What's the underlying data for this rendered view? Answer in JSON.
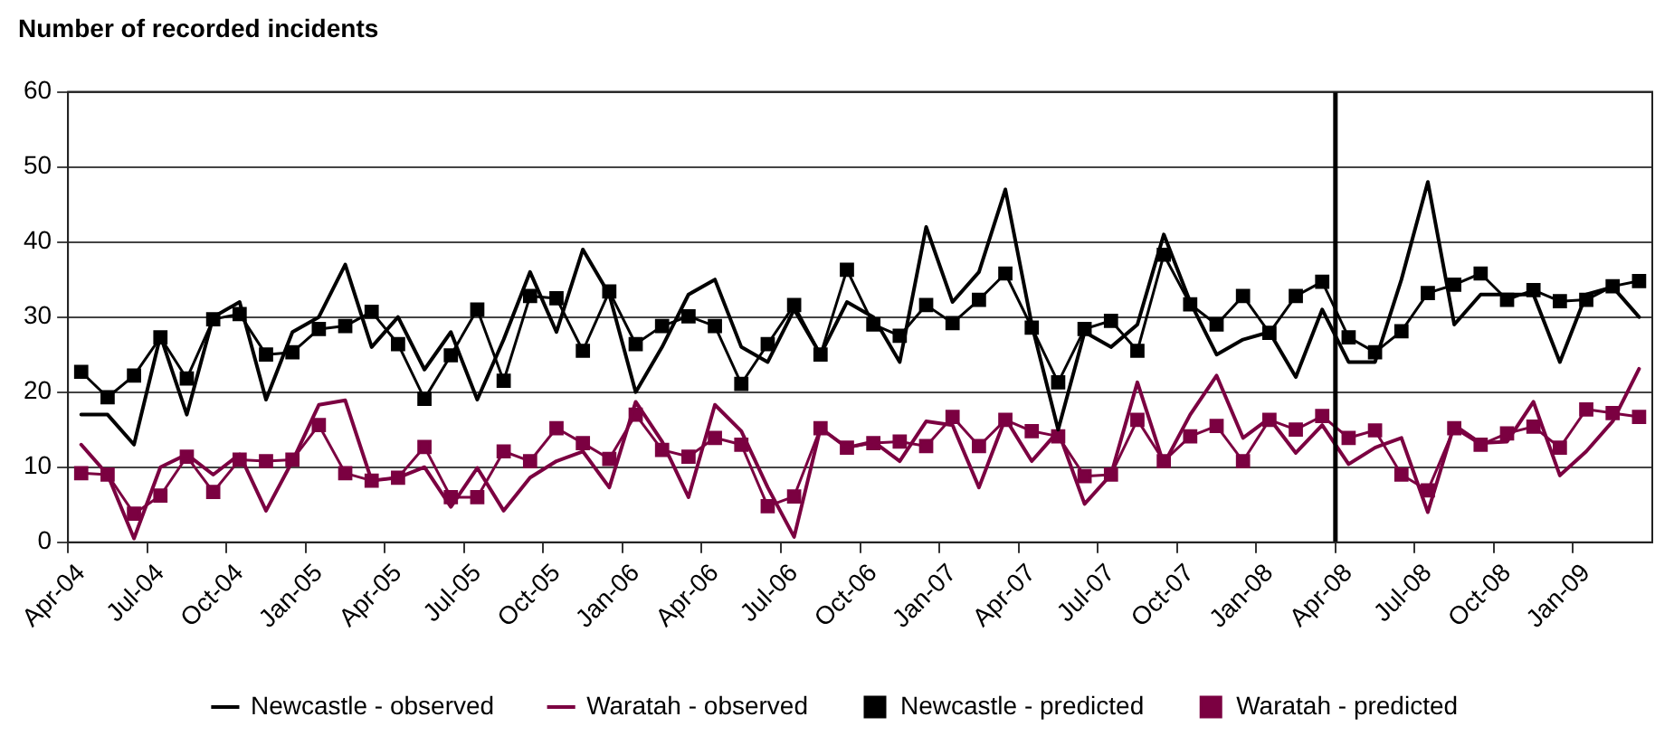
{
  "chart_data": {
    "type": "line",
    "title": "Number of recorded incidents",
    "categories": [
      "Apr-04",
      null,
      null,
      "Jul-04",
      null,
      null,
      "Oct-04",
      null,
      null,
      "Jan-05",
      null,
      null,
      "Apr-05",
      null,
      null,
      "Jul-05",
      null,
      null,
      "Oct-05",
      null,
      null,
      "Jan-06",
      null,
      null,
      "Apr-06",
      null,
      null,
      "Jul-06",
      null,
      null,
      "Oct-06",
      null,
      null,
      "Jan-07",
      null,
      null,
      "Apr-07",
      null,
      null,
      "Jul-07",
      null,
      null,
      "Oct-07",
      null,
      null,
      "Jan-08",
      null,
      null,
      "Apr-08",
      null,
      null,
      "Jul-08",
      null,
      null,
      "Oct-08",
      null,
      null,
      "Jan-09",
      null,
      null
    ],
    "series": [
      {
        "name": "Newcastle - observed",
        "color": "#000000",
        "marker": "none",
        "values": [
          17,
          17,
          13,
          27.5,
          17,
          30,
          32,
          19,
          28,
          30,
          37,
          26,
          30,
          23,
          28,
          19,
          27,
          36,
          28,
          39,
          33,
          20,
          26,
          33,
          35,
          26,
          24,
          31,
          25,
          32,
          30,
          24,
          42,
          32,
          36,
          47,
          29,
          15,
          28,
          26,
          29,
          41,
          32,
          25,
          27,
          28,
          22,
          31,
          24,
          24,
          35,
          48,
          29,
          33,
          33,
          33,
          24,
          33,
          34,
          30
        ]
      },
      {
        "name": "Waratah - observed",
        "color": "#7b0041",
        "marker": "none",
        "values": [
          13,
          9,
          0.5,
          10,
          11.7,
          9,
          11.7,
          4.2,
          10.8,
          18.3,
          18.9,
          8.2,
          8.6,
          10,
          4.7,
          9.9,
          4.2,
          8.6,
          10.8,
          12.1,
          7.3,
          18.7,
          13.4,
          6,
          18.3,
          14.8,
          7.3,
          0.7,
          15.2,
          12.6,
          13.4,
          10.8,
          16.1,
          15.6,
          7.3,
          16.5,
          10.8,
          14.8,
          5.1,
          9,
          21.3,
          10.4,
          17,
          22.2,
          13.9,
          16.5,
          11.9,
          15.6,
          10.4,
          12.6,
          13.9,
          4,
          15.6,
          13.2,
          13.4,
          18.7,
          8.9,
          12.1,
          16.1,
          23.1
        ]
      },
      {
        "name": "Newcastle - predicted",
        "color": "#000000",
        "marker": "square",
        "values": [
          22.7,
          19.3,
          22.2,
          27.3,
          21.8,
          29.7,
          30.4,
          25,
          25.3,
          28.4,
          28.8,
          30.7,
          26.4,
          19.1,
          24.9,
          31,
          21.5,
          32.8,
          32.5,
          25.5,
          33.4,
          26.4,
          28.8,
          30.1,
          28.8,
          21.1,
          26.4,
          31.6,
          25,
          36.3,
          29,
          27.5,
          31.6,
          29.2,
          32.3,
          35.8,
          28.6,
          21.3,
          28.4,
          29.5,
          25.5,
          38.3,
          31.7,
          29,
          32.8,
          27.9,
          32.8,
          34.7,
          27.3,
          25.3,
          28.1,
          33.2,
          34.3,
          35.8,
          32.3,
          33.6,
          32.1,
          32.3,
          34.1,
          34.8
        ]
      },
      {
        "name": "Waratah - predicted",
        "color": "#7b0041",
        "marker": "square",
        "values": [
          9.2,
          9,
          3.8,
          6.2,
          11.4,
          6.7,
          11,
          10.8,
          11,
          15.6,
          9.2,
          8.2,
          8.6,
          12.7,
          6,
          6,
          12.1,
          10.8,
          15.2,
          13.2,
          11.1,
          17,
          12.3,
          11.4,
          13.9,
          13,
          4.8,
          6.1,
          15.2,
          12.6,
          13.2,
          13.4,
          12.8,
          16.7,
          12.8,
          16.3,
          14.8,
          14.1,
          8.8,
          9,
          16.3,
          10.8,
          14.1,
          15.5,
          10.8,
          16.3,
          15,
          16.8,
          13.9,
          14.9,
          9,
          6.9,
          15.2,
          13,
          14.5,
          15.4,
          12.6,
          17.7,
          17.2,
          16.7
        ]
      }
    ],
    "ylim": [
      0,
      60
    ],
    "yticks": [
      0,
      10,
      20,
      30,
      40,
      50,
      60
    ],
    "grid": "y",
    "legend": "bottom",
    "ref_lines": [
      {
        "axis": "x",
        "value": "Apr-08",
        "color": "#000000"
      }
    ]
  }
}
